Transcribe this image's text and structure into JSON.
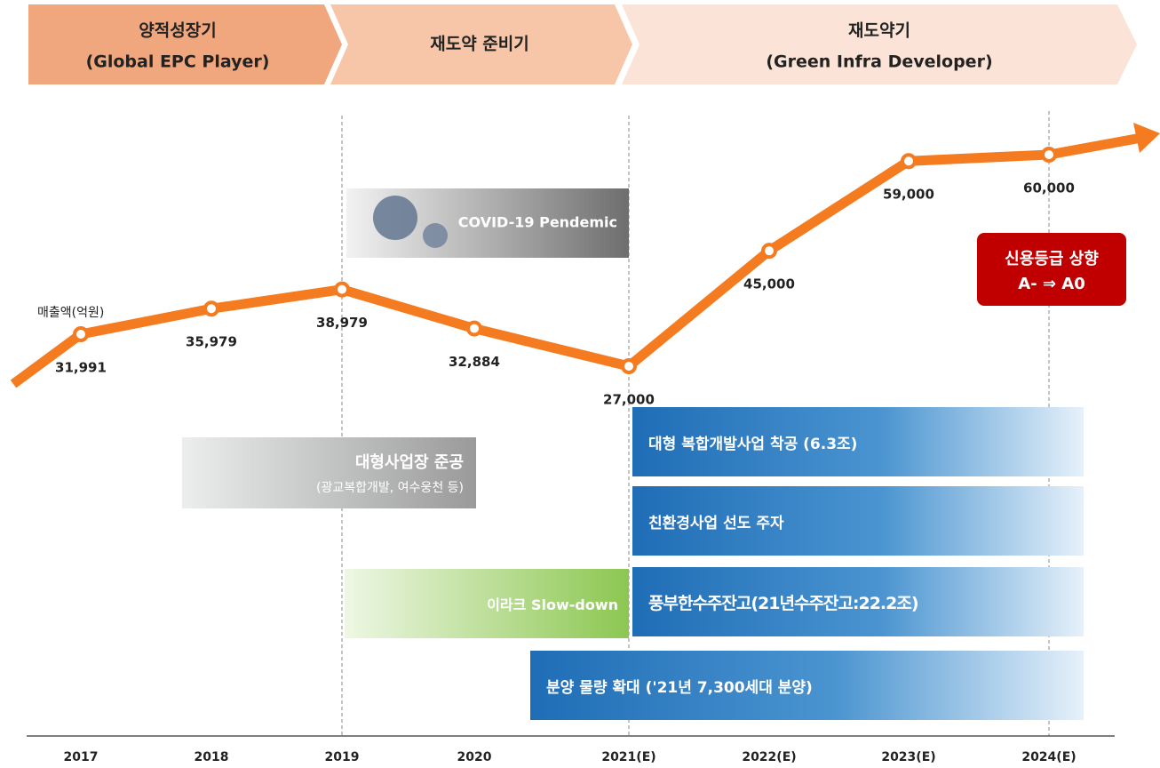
{
  "chart_data": {
    "type": "line",
    "phases": [
      {
        "title": "양적성장기",
        "subtitle": "(Global EPC Player)"
      },
      {
        "title": "재도약 준비기"
      },
      {
        "title": "재도약기",
        "subtitle": "(Green Infra Developer)"
      }
    ],
    "unit_label": "매출액(억원)",
    "categories": [
      "2017",
      "2018",
      "2019",
      "2020",
      "2021(E)",
      "2022(E)",
      "2023(E)",
      "2024(E)"
    ],
    "values": [
      31991,
      35979,
      38979,
      32884,
      27000,
      45000,
      59000,
      60000
    ],
    "value_labels": [
      "31,991",
      "35,979",
      "38,979",
      "32,884",
      "27,000",
      "45,000",
      "59,000",
      "60,000"
    ],
    "color": "#f47b20",
    "annotations": {
      "covid": "COVID-19 Pendemic",
      "completion": {
        "title": "대형사업장 준공",
        "subtitle": "(광교복합개발, 여수웅천 등)"
      },
      "iraq": "이라크 Slow-down",
      "rating": {
        "title": "신용등급 상향",
        "change": "A- ⇒ A0"
      },
      "plans": [
        "대형 복합개발사업 착공 (6.3조)",
        "친환경사업 선도 주자",
        "풍부한수주잔고(21년수주잔고:22.2조)",
        "분양 물량 확대 ('21년 7,300세대 분양)"
      ]
    }
  }
}
